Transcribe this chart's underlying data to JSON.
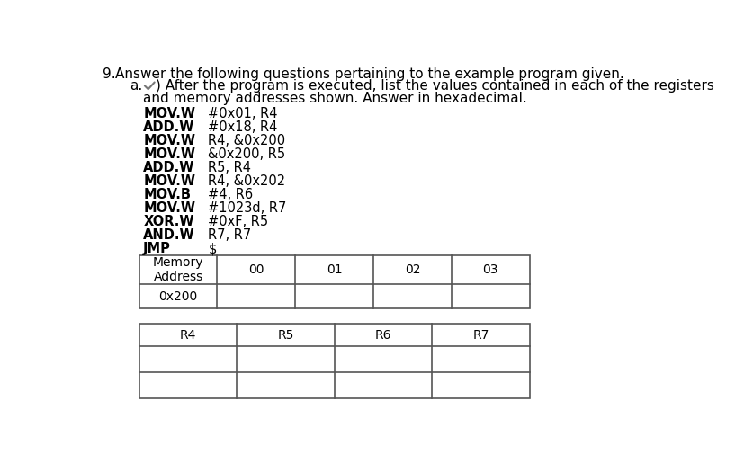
{
  "title_num": "9.",
  "title_text": "  Answer the following questions pertaining to the example program given.",
  "sub_label": "a.",
  "sub_text_line1": ") After the program is executed, list the values contained in each of the registers",
  "sub_text_line2": "and memory addresses shown. Answer in hexadecimal.",
  "code_lines": [
    [
      "MOV.W",
      "#0x01, R4"
    ],
    [
      "ADD.W",
      "#0x18, R4"
    ],
    [
      "MOV.W",
      "R4, &0x200"
    ],
    [
      "MOV.W",
      "&0x200, R5"
    ],
    [
      "ADD.W",
      "R5, R4"
    ],
    [
      "MOV.W",
      "R4, &0x202"
    ],
    [
      "MOV.B",
      "#4, R6"
    ],
    [
      "MOV.W",
      "#1023d, R7"
    ],
    [
      "XOR.W",
      "#0xF, R5"
    ],
    [
      "AND.W",
      "R7, R7"
    ],
    [
      "JMP",
      "$"
    ]
  ],
  "mem_table_headers": [
    "Memory\nAddress",
    "00",
    "01",
    "02",
    "03"
  ],
  "mem_table_rows": [
    [
      "0x200",
      "",
      "",
      "",
      ""
    ]
  ],
  "reg_table_headers": [
    "R4",
    "R5",
    "R6",
    "R7"
  ],
  "reg_table_rows": [
    [
      "",
      "",
      "",
      ""
    ],
    [
      "",
      "",
      "",
      ""
    ]
  ],
  "bg_color": "#ffffff",
  "text_color": "#000000",
  "table_line_color": "#555555",
  "font_size_title": 11,
  "font_size_sub": 11,
  "font_size_code": 10.5,
  "font_size_table": 10
}
